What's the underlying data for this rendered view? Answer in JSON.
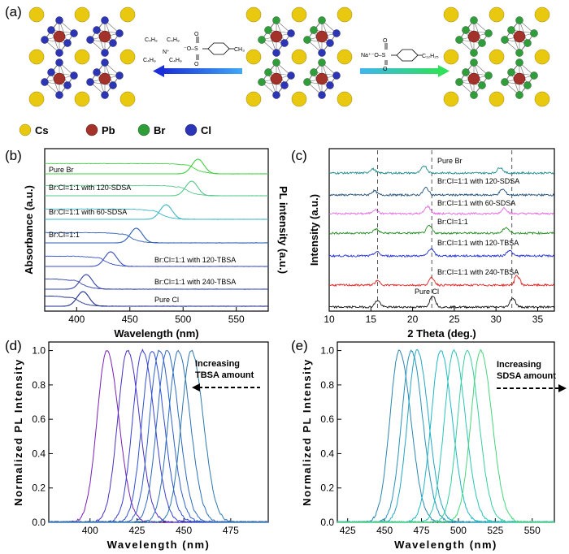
{
  "panels": {
    "a": "(a)",
    "b": "(b)",
    "c": "(c)",
    "d": "(d)",
    "e": "(e)"
  },
  "structure": {
    "legend": [
      "Cs",
      "Pb",
      "Br",
      "Cl"
    ],
    "colors": {
      "Cs": "#e8c90f",
      "Pb": "#a3322a",
      "Br": "#2f9e3a",
      "Cl": "#2b35b5"
    },
    "left_reagent": {
      "ammonium": "C4H9 N+ C4H9 C4H9 C4H9",
      "anion": "-O-S(=O)(=O)-C6H4-CH3"
    },
    "right_reagent": {
      "cation": "Na+",
      "anion": "-O-S(=O)(=O)-C6H4-C12H25"
    }
  },
  "chart_data": [
    {
      "id": "b",
      "type": "line",
      "xlabel": "Wavelength (nm)",
      "ylabel_left": "Absorbance (a.u.)",
      "ylabel_right": "PL intensity (a.u.)",
      "xlim": [
        370,
        580
      ],
      "xticks": [
        400,
        450,
        500,
        550
      ],
      "series": [
        {
          "name": "Pure Br",
          "pl_peak": 514,
          "abs_edge": 510,
          "color": "#3fd13f"
        },
        {
          "name": "Br:Cl=1:1 with 120-SDSA",
          "pl_peak": 508,
          "abs_edge": 503,
          "color": "#55c98a"
        },
        {
          "name": "Br:Cl=1:1 with 60-SDSA",
          "pl_peak": 484,
          "abs_edge": 478,
          "color": "#3bb7c6"
        },
        {
          "name": "Br:Cl=1:1",
          "pl_peak": 456,
          "abs_edge": 450,
          "color": "#2b5fb5"
        },
        {
          "name": "Br:Cl=1:1 with 120-TBSA",
          "pl_peak": 432,
          "abs_edge": 426,
          "color": "#3a4fc4"
        },
        {
          "name": "Br:Cl=1:1 with 240-TBSA",
          "pl_peak": 409,
          "abs_edge": 404,
          "color": "#3344aa"
        },
        {
          "name": "Pure Cl",
          "pl_peak": 406,
          "abs_edge": 401,
          "color": "#1f2d8a"
        }
      ]
    },
    {
      "id": "c",
      "type": "line",
      "xlabel": "2 Theta (deg.)",
      "ylabel": "Intensity (a.u.)",
      "xlim": [
        10,
        37
      ],
      "xticks": [
        10,
        15,
        20,
        25,
        30,
        35
      ],
      "reference_lines": [
        15.8,
        22.3,
        31.9
      ],
      "series": [
        {
          "name": "Pure Br",
          "peaks": [
            15.2,
            21.4,
            30.5
          ],
          "color": "#1f8a8a"
        },
        {
          "name": "Br:Cl=1:1 with 120-SDSA",
          "peaks": [
            15.4,
            21.6,
            30.8
          ],
          "color": "#1f4f7a"
        },
        {
          "name": "Br:Cl=1:1 with 60-SDSA",
          "peaks": [
            15.5,
            21.8,
            31.0
          ],
          "color": "#e46be4"
        },
        {
          "name": "Br:Cl=1:1",
          "peaks": [
            15.6,
            22.0,
            31.2
          ],
          "color": "#1f8a1f"
        },
        {
          "name": "Br:Cl=1:1 with 120-TBSA",
          "peaks": [
            15.7,
            22.2,
            31.6
          ],
          "color": "#1f2fd1"
        },
        {
          "name": "Br:Cl=1:1 with 240-TBSA",
          "peaks": [
            15.8,
            22.3,
            32.5
          ],
          "color": "#e01f1f"
        },
        {
          "name": "Pure Cl",
          "peaks": [
            15.8,
            22.4,
            32.0
          ],
          "color": "#111111"
        }
      ]
    },
    {
      "id": "d",
      "type": "line",
      "xlabel": "Wavelength (nm)",
      "ylabel": "Normalized PL Intensity",
      "xlim": [
        378,
        495
      ],
      "ylim": [
        0.0,
        1.05
      ],
      "xticks": [
        400,
        425,
        450,
        475
      ],
      "yticks": [
        0.0,
        0.2,
        0.4,
        0.6,
        0.8,
        1.0
      ],
      "annotation": "Increasing TBSA amount",
      "peaks": [
        409,
        420,
        428,
        433,
        437,
        441,
        447,
        454
      ],
      "fwhm": 13
    },
    {
      "id": "e",
      "type": "line",
      "xlabel": "Wavelength (nm)",
      "ylabel": "Normalized PL Intensity",
      "xlim": [
        418,
        565
      ],
      "ylim": [
        0.0,
        1.05
      ],
      "xticks": [
        425,
        450,
        475,
        500,
        525,
        550
      ],
      "yticks": [
        0.0,
        0.2,
        0.4,
        0.6,
        0.8,
        1.0
      ],
      "annotation": "Increasing SDSA amount",
      "peaks": [
        460,
        468,
        472,
        488,
        497,
        506,
        515
      ],
      "fwhm": 16
    }
  ]
}
